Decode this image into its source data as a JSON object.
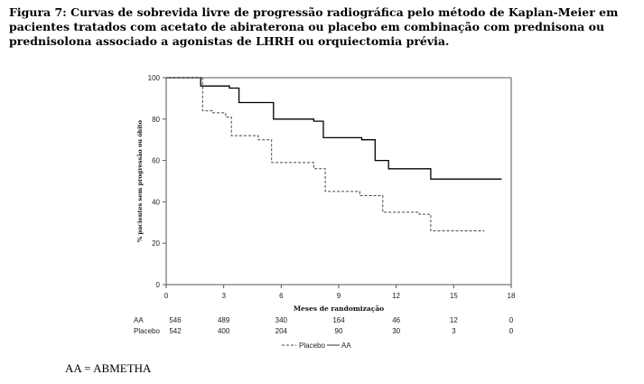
{
  "caption": "Figura 7: Curvas de sobrevida livre de progressão radiográfica pelo método de Kaplan-Meier em pacientes tratados com acetato de abiraterona ou placebo em combinação com prednisona ou prednisolona associado a agonistas de LHRH ou orquiectomia prévia.",
  "footnote": "AA = ABMETHA",
  "chart_data": {
    "type": "line",
    "title": "",
    "xlabel": "Meses de randomização",
    "ylabel": "% pacientes sem progressão ou óbito",
    "xlim": [
      0,
      18
    ],
    "ylim": [
      0,
      100
    ],
    "xticks": [
      0,
      3,
      6,
      9,
      12,
      15,
      18
    ],
    "yticks": [
      0,
      20,
      40,
      60,
      80,
      100
    ],
    "grid": false,
    "legend_position": "bottom",
    "series": [
      {
        "name": "AA",
        "style": "solid",
        "color": "#000000",
        "points": [
          [
            0,
            100
          ],
          [
            1.7,
            100
          ],
          [
            1.8,
            96
          ],
          [
            3.3,
            95
          ],
          [
            3.8,
            88
          ],
          [
            5.2,
            88
          ],
          [
            5.6,
            80
          ],
          [
            7.7,
            79
          ],
          [
            8.2,
            71
          ],
          [
            10.2,
            70
          ],
          [
            10.9,
            60
          ],
          [
            11.6,
            56
          ],
          [
            13.6,
            56
          ],
          [
            13.8,
            51
          ],
          [
            17.5,
            51
          ]
        ]
      },
      {
        "name": "Placebo",
        "style": "dashed",
        "color": "#444444",
        "points": [
          [
            0,
            100
          ],
          [
            1.6,
            100
          ],
          [
            1.9,
            84
          ],
          [
            2.4,
            83
          ],
          [
            3.1,
            81
          ],
          [
            3.4,
            72
          ],
          [
            4.8,
            70
          ],
          [
            5.5,
            59
          ],
          [
            7.7,
            56
          ],
          [
            8.3,
            45
          ],
          [
            10.1,
            43
          ],
          [
            11.3,
            35
          ],
          [
            13.2,
            34
          ],
          [
            13.8,
            26
          ],
          [
            16.6,
            26
          ]
        ]
      }
    ],
    "risk_table": {
      "at_months": [
        0,
        3,
        6,
        9,
        12,
        15,
        18
      ],
      "rows": [
        {
          "label": "AA",
          "values": [
            "546",
            "489",
            "340",
            "164",
            "46",
            "12",
            "0"
          ]
        },
        {
          "label": "Placebo",
          "values": [
            "542",
            "400",
            "204",
            "90",
            "30",
            "3",
            "0"
          ]
        }
      ]
    },
    "legend": [
      "Placebo",
      "AA"
    ]
  }
}
